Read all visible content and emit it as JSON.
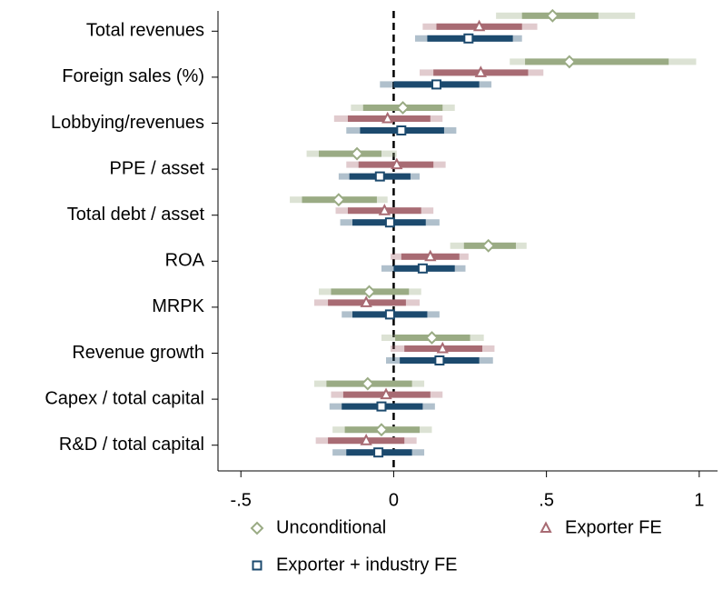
{
  "chart_data": {
    "type": "coefplot",
    "categories": [
      "Total revenues",
      "Foreign sales (%)",
      "Lobbying/revenues",
      "PPE / asset",
      "Total debt / asset",
      "ROA",
      "MRPK",
      "Revenue growth",
      "Capex / total capital",
      "R&D / total capital"
    ],
    "xlim": [
      -0.575,
      1.06
    ],
    "xticks": [
      {
        "value": -0.5,
        "label": "-.5"
      },
      0,
      {
        "value": 0.5,
        "label": ".5"
      },
      1
    ],
    "zero_line": true,
    "series": [
      {
        "name": "Unconditional",
        "color": "#9aab84",
        "marker": "diamond",
        "values": [
          0.52,
          0.575,
          0.03,
          -0.12,
          -0.18,
          0.31,
          -0.08,
          0.125,
          -0.085,
          -0.04
        ],
        "inner_low": [
          0.42,
          0.43,
          -0.1,
          -0.245,
          -0.3,
          0.23,
          -0.205,
          0.005,
          -0.22,
          -0.16
        ],
        "inner_high": [
          0.67,
          0.9,
          0.16,
          -0.04,
          -0.055,
          0.4,
          0.05,
          0.25,
          0.06,
          0.085
        ],
        "outer_low": [
          0.335,
          0.38,
          -0.14,
          -0.285,
          -0.34,
          0.185,
          -0.245,
          -0.04,
          -0.26,
          -0.2
        ],
        "outer_high": [
          0.79,
          0.99,
          0.2,
          0.01,
          -0.02,
          0.435,
          0.09,
          0.295,
          0.1,
          0.125
        ]
      },
      {
        "name": "Exporter FE",
        "color": "#a86b73",
        "marker": "triangle",
        "values": [
          0.28,
          0.285,
          -0.02,
          0.01,
          -0.03,
          0.12,
          -0.09,
          0.16,
          -0.025,
          -0.09
        ],
        "inner_low": [
          0.14,
          0.13,
          -0.15,
          -0.115,
          -0.15,
          0.025,
          -0.215,
          0.035,
          -0.165,
          -0.215
        ],
        "inner_high": [
          0.42,
          0.44,
          0.12,
          0.13,
          0.09,
          0.215,
          0.04,
          0.29,
          0.12,
          0.035
        ],
        "outer_low": [
          0.095,
          0.085,
          -0.195,
          -0.155,
          -0.19,
          -0.01,
          -0.26,
          -0.01,
          -0.205,
          -0.255
        ],
        "outer_high": [
          0.47,
          0.49,
          0.16,
          0.17,
          0.13,
          0.245,
          0.085,
          0.33,
          0.16,
          0.075
        ]
      },
      {
        "name": "Exporter + industry FE",
        "color": "#1c4a6e",
        "marker": "square",
        "values": [
          0.245,
          0.14,
          0.025,
          -0.045,
          -0.012,
          0.095,
          -0.012,
          0.15,
          -0.04,
          -0.05
        ],
        "inner_low": [
          0.11,
          0.0,
          -0.11,
          -0.145,
          -0.135,
          0.0,
          -0.135,
          0.02,
          -0.17,
          -0.155
        ],
        "inner_high": [
          0.39,
          0.28,
          0.165,
          0.055,
          0.105,
          0.2,
          0.11,
          0.28,
          0.095,
          0.06
        ],
        "outer_low": [
          0.07,
          -0.045,
          -0.155,
          -0.18,
          -0.175,
          -0.04,
          -0.17,
          -0.025,
          -0.21,
          -0.2
        ],
        "outer_high": [
          0.42,
          0.32,
          0.205,
          0.085,
          0.15,
          0.235,
          0.15,
          0.325,
          0.135,
          0.1
        ]
      }
    ]
  }
}
